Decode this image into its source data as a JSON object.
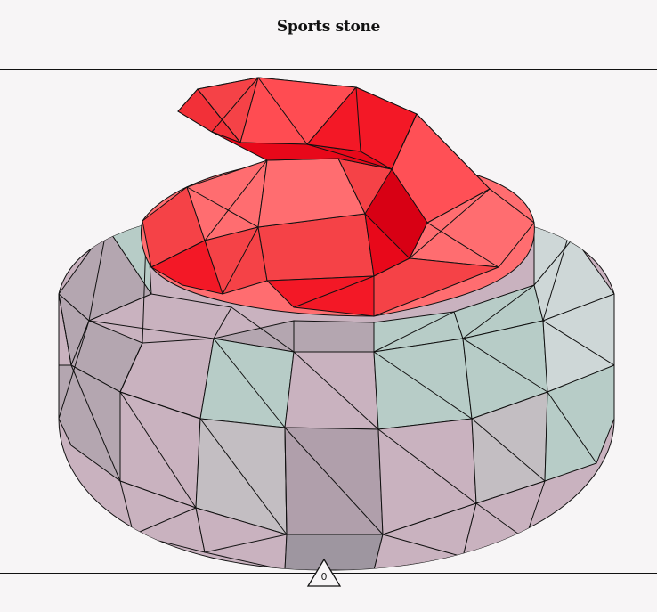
{
  "header": {
    "title": "Sports stone"
  },
  "figure": {
    "icon": "curling-stone-icon",
    "colors": {
      "handle_red": "#f31826",
      "top_band": "#b7ccc7",
      "side_pink": "#c9b2bf",
      "side_grey": "#b4a6b0",
      "edge": "#111111"
    }
  },
  "marker": {
    "label": "0"
  }
}
